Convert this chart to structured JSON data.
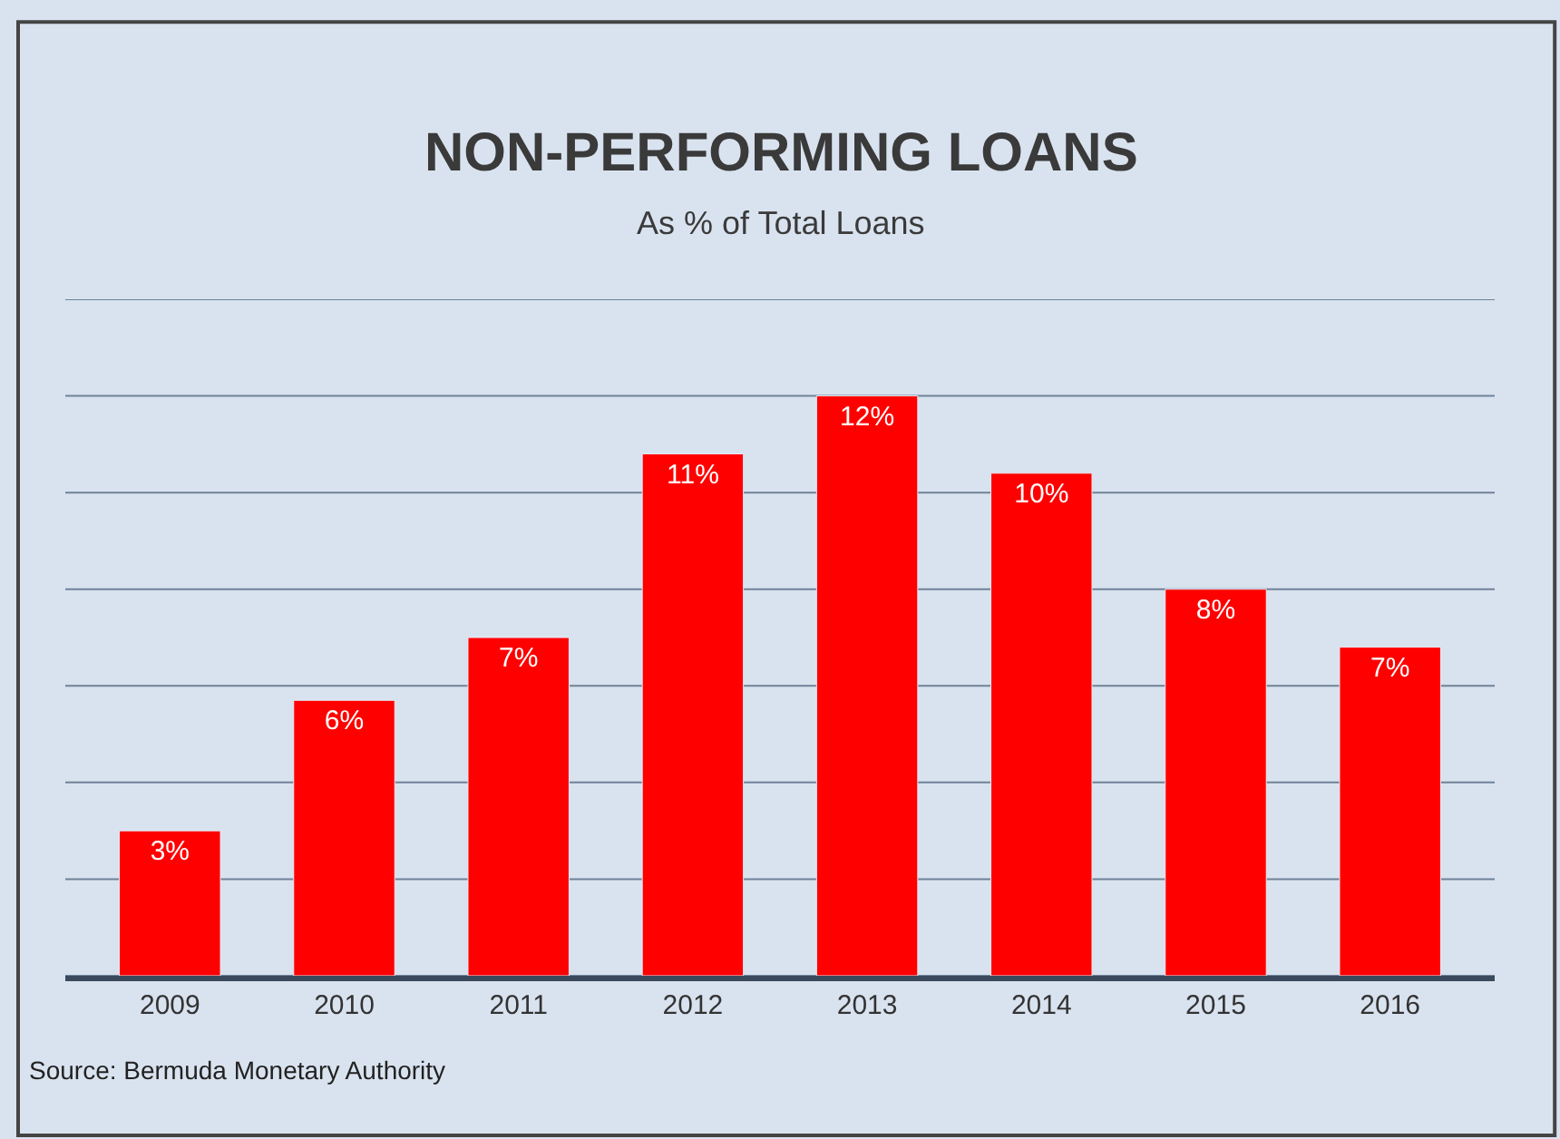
{
  "chart_data": {
    "type": "bar",
    "title": "NON-PERFORMING LOANS",
    "subtitle": "As % of Total Loans",
    "categories": [
      "2009",
      "2010",
      "2011",
      "2012",
      "2013",
      "2014",
      "2015",
      "2016"
    ],
    "values": [
      3,
      5.7,
      7,
      10.8,
      12,
      10.4,
      8,
      6.8
    ],
    "value_labels": [
      "3%",
      "6%",
      "7%",
      "11%",
      "12%",
      "10%",
      "8%",
      "7%"
    ],
    "color": "#ff0000",
    "ylim": [
      0,
      14
    ],
    "yticks": [
      {
        "value": 0,
        "label": null
      },
      {
        "value": 2,
        "label": null
      },
      {
        "value": 4,
        "label": null
      },
      {
        "value": 6,
        "label": null
      },
      {
        "value": 8,
        "label": null
      },
      {
        "value": 10,
        "label": null
      },
      {
        "value": 12,
        "label": null
      },
      {
        "value": 14,
        "label": null
      }
    ],
    "grid": "y",
    "tick_labels": "x",
    "annotations": [
      "Source: Bermuda Monetary Authority"
    ]
  }
}
